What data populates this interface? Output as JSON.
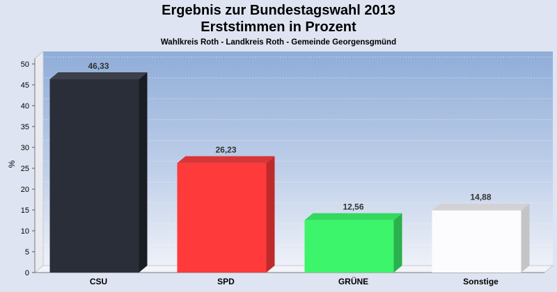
{
  "chart_data": {
    "type": "bar",
    "title": "Ergebnis zur Bundestagswahl 2013",
    "subtitle": "Erststimmen in Prozent",
    "caption": "Wahlkreis Roth - Landkreis Roth - Gemeinde Georgensgmünd",
    "ylabel": "%",
    "ylim": [
      0,
      50
    ],
    "yticks": [
      0,
      5,
      10,
      15,
      20,
      25,
      30,
      35,
      40,
      45,
      50
    ],
    "grid": true,
    "categories": [
      "CSU",
      "SPD",
      "GRÜNE",
      "Sonstige"
    ],
    "values": [
      46.33,
      26.23,
      12.56,
      14.88
    ],
    "value_labels": [
      "46,33",
      "26,23",
      "12,56",
      "14,88"
    ],
    "colors": [
      "#2a2e38",
      "#ff3a3a",
      "#3cf56a",
      "#fcfcfe"
    ],
    "side_colors": [
      "#1b1d24",
      "#bf2a2a",
      "#2ab04c",
      "#c4c4c8"
    ],
    "top_colors": [
      "#3c404a",
      "#d83636",
      "#34d85e",
      "#d2d2d6"
    ]
  }
}
